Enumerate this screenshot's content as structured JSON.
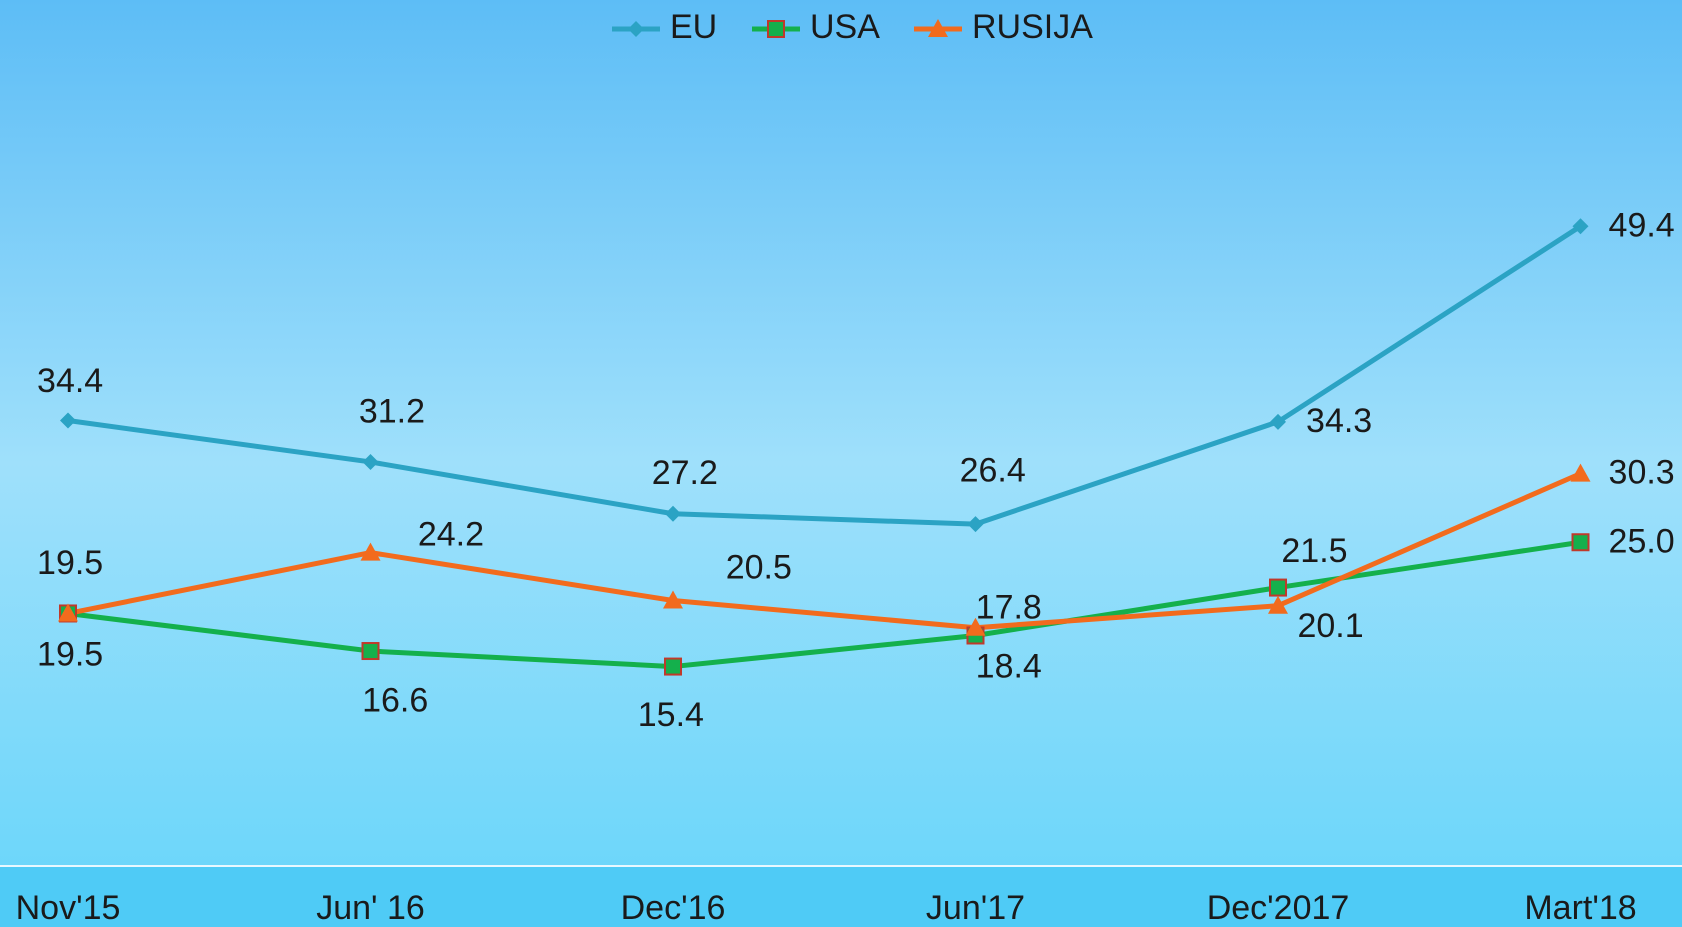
{
  "chart_data": {
    "type": "line",
    "categories": [
      "Nov'15",
      "Jun' 16",
      "Dec'16",
      "Jun'17",
      "Dec'2017",
      "Mart'18"
    ],
    "series": [
      {
        "name": "EU",
        "color": "#2ba3c4",
        "marker": "diamond",
        "values": [
          34.4,
          31.2,
          27.2,
          26.4,
          34.3,
          49.4
        ]
      },
      {
        "name": "USA",
        "color": "#14b04c",
        "marker": "square",
        "values": [
          19.5,
          16.6,
          15.4,
          17.8,
          21.5,
          25.0
        ],
        "value_labels": [
          "19.5",
          "16.6",
          "15.4",
          "17.8",
          "21.5",
          "25.0"
        ]
      },
      {
        "name": "RUSIJA",
        "color": "#f26b1d",
        "marker": "triangle",
        "values": [
          19.5,
          24.2,
          20.5,
          18.4,
          20.1,
          30.3
        ]
      }
    ],
    "ylim": [
      0,
      60
    ],
    "legend": "top"
  }
}
